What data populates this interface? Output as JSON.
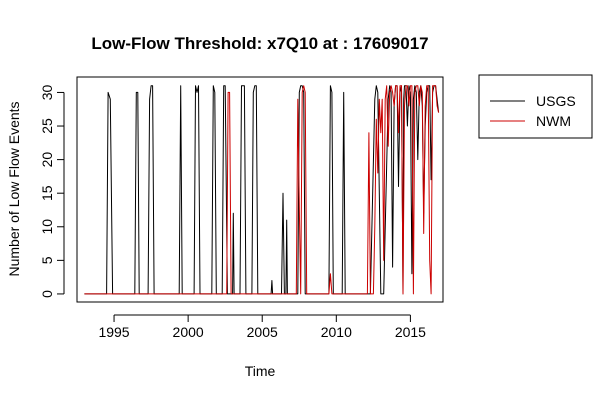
{
  "chart_data": {
    "type": "line",
    "title": "Low-Flow Threshold: x7Q10 at : 17609017",
    "xlabel": "Time",
    "ylabel": "Number of Low Flow Events",
    "xlim": [
      1992.5,
      2017.2
    ],
    "ylim": [
      -1.2,
      32.3
    ],
    "x_ticks": [
      1995,
      2000,
      2005,
      2010,
      2015
    ],
    "y_ticks": [
      0,
      5,
      10,
      15,
      20,
      25,
      30
    ],
    "grid": false,
    "legend_position": "right",
    "series": [
      {
        "name": "USGS",
        "color": "#000000",
        "points": [
          [
            1993.0,
            0
          ],
          [
            1994.5,
            0
          ],
          [
            1994.6,
            30
          ],
          [
            1994.75,
            29
          ],
          [
            1994.9,
            0
          ],
          [
            1996.4,
            0
          ],
          [
            1996.5,
            30
          ],
          [
            1996.6,
            30
          ],
          [
            1996.7,
            0
          ],
          [
            1997.3,
            0
          ],
          [
            1997.4,
            29
          ],
          [
            1997.5,
            31
          ],
          [
            1997.6,
            31
          ],
          [
            1997.7,
            0
          ],
          [
            1999.4,
            0
          ],
          [
            1999.5,
            31
          ],
          [
            1999.6,
            0
          ],
          [
            2000.4,
            0
          ],
          [
            2000.5,
            31
          ],
          [
            2000.6,
            30
          ],
          [
            2000.7,
            31
          ],
          [
            2000.8,
            0
          ],
          [
            2001.6,
            0
          ],
          [
            2001.7,
            31
          ],
          [
            2001.8,
            30
          ],
          [
            2001.9,
            0
          ],
          [
            2002.3,
            0
          ],
          [
            2002.4,
            31
          ],
          [
            2002.5,
            31
          ],
          [
            2002.65,
            0
          ],
          [
            2003.0,
            0
          ],
          [
            2003.05,
            12
          ],
          [
            2003.1,
            0
          ],
          [
            2003.5,
            0
          ],
          [
            2003.6,
            31
          ],
          [
            2003.8,
            31
          ],
          [
            2003.9,
            0
          ],
          [
            2004.3,
            0
          ],
          [
            2004.4,
            30
          ],
          [
            2004.5,
            31
          ],
          [
            2004.6,
            31
          ],
          [
            2004.7,
            0
          ],
          [
            2005.6,
            0
          ],
          [
            2005.65,
            2
          ],
          [
            2005.7,
            0
          ],
          [
            2006.3,
            0
          ],
          [
            2006.4,
            15
          ],
          [
            2006.5,
            0
          ],
          [
            2006.6,
            0
          ],
          [
            2006.65,
            11
          ],
          [
            2006.7,
            0
          ],
          [
            2007.4,
            0
          ],
          [
            2007.5,
            30
          ],
          [
            2007.6,
            31
          ],
          [
            2007.7,
            31
          ],
          [
            2007.8,
            30
          ],
          [
            2007.9,
            0
          ],
          [
            2009.5,
            0
          ],
          [
            2009.6,
            31
          ],
          [
            2009.7,
            30
          ],
          [
            2009.8,
            0
          ],
          [
            2010.4,
            0
          ],
          [
            2010.5,
            30
          ],
          [
            2010.6,
            0
          ],
          [
            2012.3,
            0
          ],
          [
            2012.6,
            29
          ],
          [
            2012.7,
            31
          ],
          [
            2012.8,
            30
          ],
          [
            2013.0,
            0
          ],
          [
            2013.2,
            0
          ],
          [
            2013.5,
            29
          ],
          [
            2013.6,
            31
          ],
          [
            2013.7,
            30
          ],
          [
            2013.8,
            4
          ],
          [
            2013.9,
            28
          ],
          [
            2014.0,
            31
          ],
          [
            2014.1,
            31
          ],
          [
            2014.2,
            16
          ],
          [
            2014.3,
            30
          ],
          [
            2014.4,
            31
          ],
          [
            2014.5,
            0
          ],
          [
            2014.55,
            29
          ],
          [
            2014.6,
            31
          ],
          [
            2014.7,
            31
          ],
          [
            2014.8,
            25
          ],
          [
            2014.9,
            31
          ],
          [
            2015.0,
            30
          ],
          [
            2015.1,
            3
          ],
          [
            2015.2,
            29
          ],
          [
            2015.3,
            31
          ],
          [
            2015.4,
            30
          ],
          [
            2015.5,
            20
          ],
          [
            2015.6,
            30
          ],
          [
            2015.7,
            31
          ],
          [
            2015.8,
            28
          ],
          [
            2015.9,
            12
          ],
          [
            2016.0,
            25
          ],
          [
            2016.1,
            30
          ],
          [
            2016.2,
            31
          ],
          [
            2016.3,
            31
          ],
          [
            2016.4,
            17
          ],
          [
            2016.5,
            30
          ],
          [
            2016.6,
            31
          ],
          [
            2016.7,
            31
          ],
          [
            2016.8,
            29
          ],
          [
            2016.9,
            27
          ]
        ]
      },
      {
        "name": "NWM",
        "color": "#cc0000",
        "points": [
          [
            1993.0,
            0
          ],
          [
            2002.6,
            0
          ],
          [
            2002.7,
            30
          ],
          [
            2002.8,
            30
          ],
          [
            2002.9,
            0
          ],
          [
            2007.3,
            0
          ],
          [
            2007.4,
            29
          ],
          [
            2007.5,
            13
          ],
          [
            2007.6,
            0
          ],
          [
            2007.7,
            30
          ],
          [
            2007.8,
            31
          ],
          [
            2007.9,
            30
          ],
          [
            2008.0,
            0
          ],
          [
            2009.5,
            0
          ],
          [
            2009.6,
            3
          ],
          [
            2009.7,
            0
          ],
          [
            2012.1,
            0
          ],
          [
            2012.2,
            24
          ],
          [
            2012.3,
            0
          ],
          [
            2012.5,
            0
          ],
          [
            2012.6,
            10
          ],
          [
            2012.7,
            26
          ],
          [
            2012.8,
            18
          ],
          [
            2012.9,
            29
          ],
          [
            2013.0,
            24
          ],
          [
            2013.1,
            29
          ],
          [
            2013.2,
            5
          ],
          [
            2013.3,
            29
          ],
          [
            2013.4,
            31
          ],
          [
            2013.5,
            22
          ],
          [
            2013.6,
            30
          ],
          [
            2013.7,
            31
          ],
          [
            2013.8,
            30
          ],
          [
            2013.9,
            28
          ],
          [
            2014.0,
            31
          ],
          [
            2014.1,
            31
          ],
          [
            2014.2,
            24
          ],
          [
            2014.3,
            31
          ],
          [
            2014.4,
            31
          ],
          [
            2014.5,
            0
          ],
          [
            2014.6,
            28
          ],
          [
            2014.7,
            31
          ],
          [
            2014.8,
            31
          ],
          [
            2014.9,
            28
          ],
          [
            2015.0,
            31
          ],
          [
            2015.1,
            31
          ],
          [
            2015.2,
            0
          ],
          [
            2015.3,
            30
          ],
          [
            2015.4,
            31
          ],
          [
            2015.5,
            31
          ],
          [
            2015.6,
            28
          ],
          [
            2015.7,
            31
          ],
          [
            2015.8,
            30
          ],
          [
            2015.9,
            9
          ],
          [
            2016.0,
            28
          ],
          [
            2016.1,
            31
          ],
          [
            2016.2,
            31
          ],
          [
            2016.3,
            5
          ],
          [
            2016.4,
            0
          ],
          [
            2016.5,
            31
          ],
          [
            2016.6,
            31
          ],
          [
            2016.7,
            31
          ],
          [
            2016.8,
            28
          ],
          [
            2016.9,
            27
          ]
        ]
      }
    ]
  }
}
